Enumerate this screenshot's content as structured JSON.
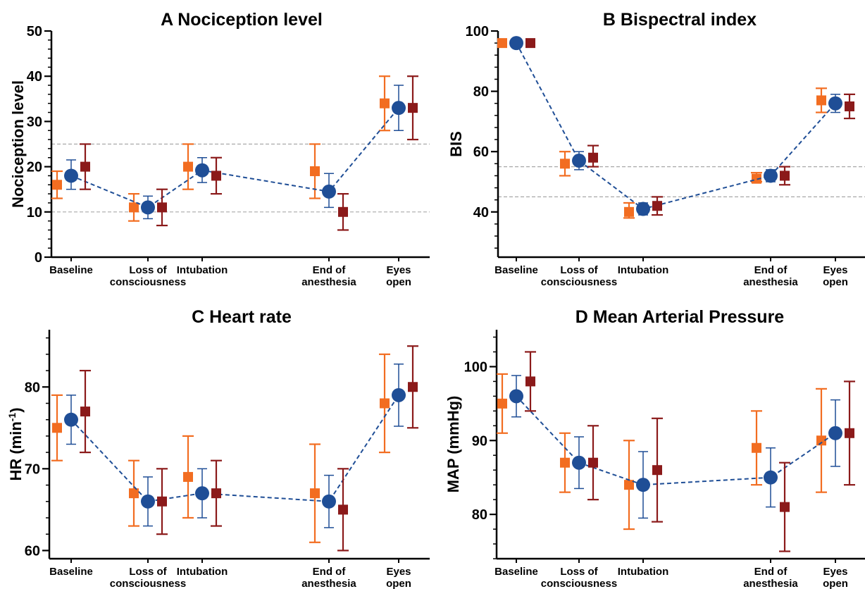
{
  "colors": {
    "orange": "#f26d21",
    "navy": "#1f4e96",
    "darkred": "#8b1a1a",
    "axis": "#000000",
    "ref_line": "#a8a8a8"
  },
  "marker_shapes": {
    "orange": "square",
    "navy": "circle",
    "darkred": "square"
  },
  "chart_data": [
    {
      "panel": "A",
      "type": "scatter",
      "title": "A  Nociception level",
      "ylabel": "Nociception level",
      "ylim": [
        0,
        50
      ],
      "yticks": [
        "0",
        "10",
        "20",
        "30",
        "40",
        "50"
      ],
      "categories": [
        "Baseline",
        "Loss of\nconsciousness",
        "Intubation",
        "End of\nanesthesia",
        "Eyes\nopen"
      ],
      "x": [
        1,
        2,
        3,
        5.5,
        6.5
      ],
      "reference_lines": [
        10,
        25
      ],
      "series": [
        {
          "color": "orange",
          "values": [
            16,
            11,
            20,
            19,
            34
          ],
          "err_low": [
            13,
            8,
            15,
            13,
            28
          ],
          "err_high": [
            19,
            14,
            25,
            25,
            40
          ]
        },
        {
          "color": "navy",
          "connected": true,
          "values": [
            18,
            11,
            19.2,
            14.5,
            33
          ],
          "err_low": [
            15,
            8.5,
            16.5,
            11,
            28
          ],
          "err_high": [
            21.5,
            13.5,
            22,
            18.5,
            38
          ]
        },
        {
          "color": "darkred",
          "values": [
            20,
            11,
            18,
            10,
            33
          ],
          "err_low": [
            15,
            7,
            14,
            6,
            26
          ],
          "err_high": [
            25,
            15,
            22,
            14,
            40
          ]
        }
      ]
    },
    {
      "panel": "B",
      "type": "scatter",
      "title": "B  Bispectral index",
      "ylabel": "BIS",
      "ylim": [
        25,
        100
      ],
      "yticks": [
        "40",
        "60",
        "80",
        "100"
      ],
      "categories": [
        "Baseline",
        "Loss of\nconsciousness",
        "Intubation",
        "End of\nanesthesia",
        "Eyes\nopen"
      ],
      "x": [
        1,
        2,
        3,
        5.5,
        6.5
      ],
      "reference_lines": [
        45,
        55
      ],
      "series": [
        {
          "color": "orange",
          "values": [
            96,
            56,
            40,
            51,
            77
          ],
          "err_low": [
            96,
            52,
            38,
            50,
            73
          ],
          "err_high": [
            96,
            60,
            43,
            53,
            81
          ]
        },
        {
          "color": "navy",
          "connected": true,
          "values": [
            96,
            57,
            41,
            52,
            76
          ],
          "err_low": [
            96,
            54,
            39,
            50,
            73
          ],
          "err_high": [
            96,
            60,
            43,
            54,
            79
          ]
        },
        {
          "color": "darkred",
          "values": [
            96,
            58,
            42,
            52,
            75
          ],
          "err_low": [
            96,
            55,
            39,
            49,
            71
          ],
          "err_high": [
            96,
            62,
            45,
            55,
            79
          ]
        }
      ]
    },
    {
      "panel": "C",
      "type": "scatter",
      "title": "C  Heart rate",
      "ylabel": "HR (min-1)",
      "ylabel_main": "HR (min",
      "ylabel_sup": "-1",
      "ylabel_end": ")",
      "ylim": [
        59,
        87
      ],
      "yticks": [
        "60",
        "70",
        "80"
      ],
      "categories": [
        "Baseline",
        "Loss of\nconsciousness",
        "Intubation",
        "End of\nanesthesia",
        "Eyes\nopen"
      ],
      "x": [
        1,
        2,
        3,
        5.5,
        6.5
      ],
      "reference_lines": [],
      "series": [
        {
          "color": "orange",
          "values": [
            75,
            67,
            69,
            67,
            78
          ],
          "err_low": [
            71,
            63,
            64,
            61,
            72
          ],
          "err_high": [
            79,
            71,
            74,
            73,
            84
          ]
        },
        {
          "color": "navy",
          "connected": true,
          "values": [
            76,
            66,
            67,
            66,
            79
          ],
          "err_low": [
            73,
            63,
            64,
            62.8,
            75.2
          ],
          "err_high": [
            79,
            69,
            70,
            69.2,
            82.8
          ]
        },
        {
          "color": "darkred",
          "values": [
            77,
            66,
            67,
            65,
            80
          ],
          "err_low": [
            72,
            62,
            63,
            60,
            75
          ],
          "err_high": [
            82,
            70,
            71,
            70,
            85
          ]
        }
      ]
    },
    {
      "panel": "D",
      "type": "scatter",
      "title": "D  Mean Arterial Pressure",
      "ylabel": "MAP (mmHg)",
      "ylim": [
        74,
        105
      ],
      "yticks": [
        "80",
        "90",
        "100"
      ],
      "categories": [
        "Baseline",
        "Loss of\nconsciousness",
        "Intubation",
        "End of\nanesthesia",
        "Eyes\nopen"
      ],
      "x": [
        1,
        2,
        3,
        5.5,
        6.5
      ],
      "reference_lines": [],
      "series": [
        {
          "color": "orange",
          "values": [
            95,
            87,
            84,
            89,
            90
          ],
          "err_low": [
            91,
            83,
            78,
            84,
            83
          ],
          "err_high": [
            99,
            91,
            90,
            94,
            97
          ]
        },
        {
          "color": "navy",
          "connected": true,
          "values": [
            96,
            87,
            84,
            85,
            91
          ],
          "err_low": [
            93.2,
            83.5,
            79.5,
            81,
            86.5
          ],
          "err_high": [
            98.8,
            90.5,
            88.5,
            89,
            95.5
          ]
        },
        {
          "color": "darkred",
          "values": [
            98,
            87,
            86,
            81,
            91
          ],
          "err_low": [
            94,
            82,
            79,
            75,
            84
          ],
          "err_high": [
            102,
            92,
            93,
            87,
            98
          ]
        }
      ]
    }
  ]
}
